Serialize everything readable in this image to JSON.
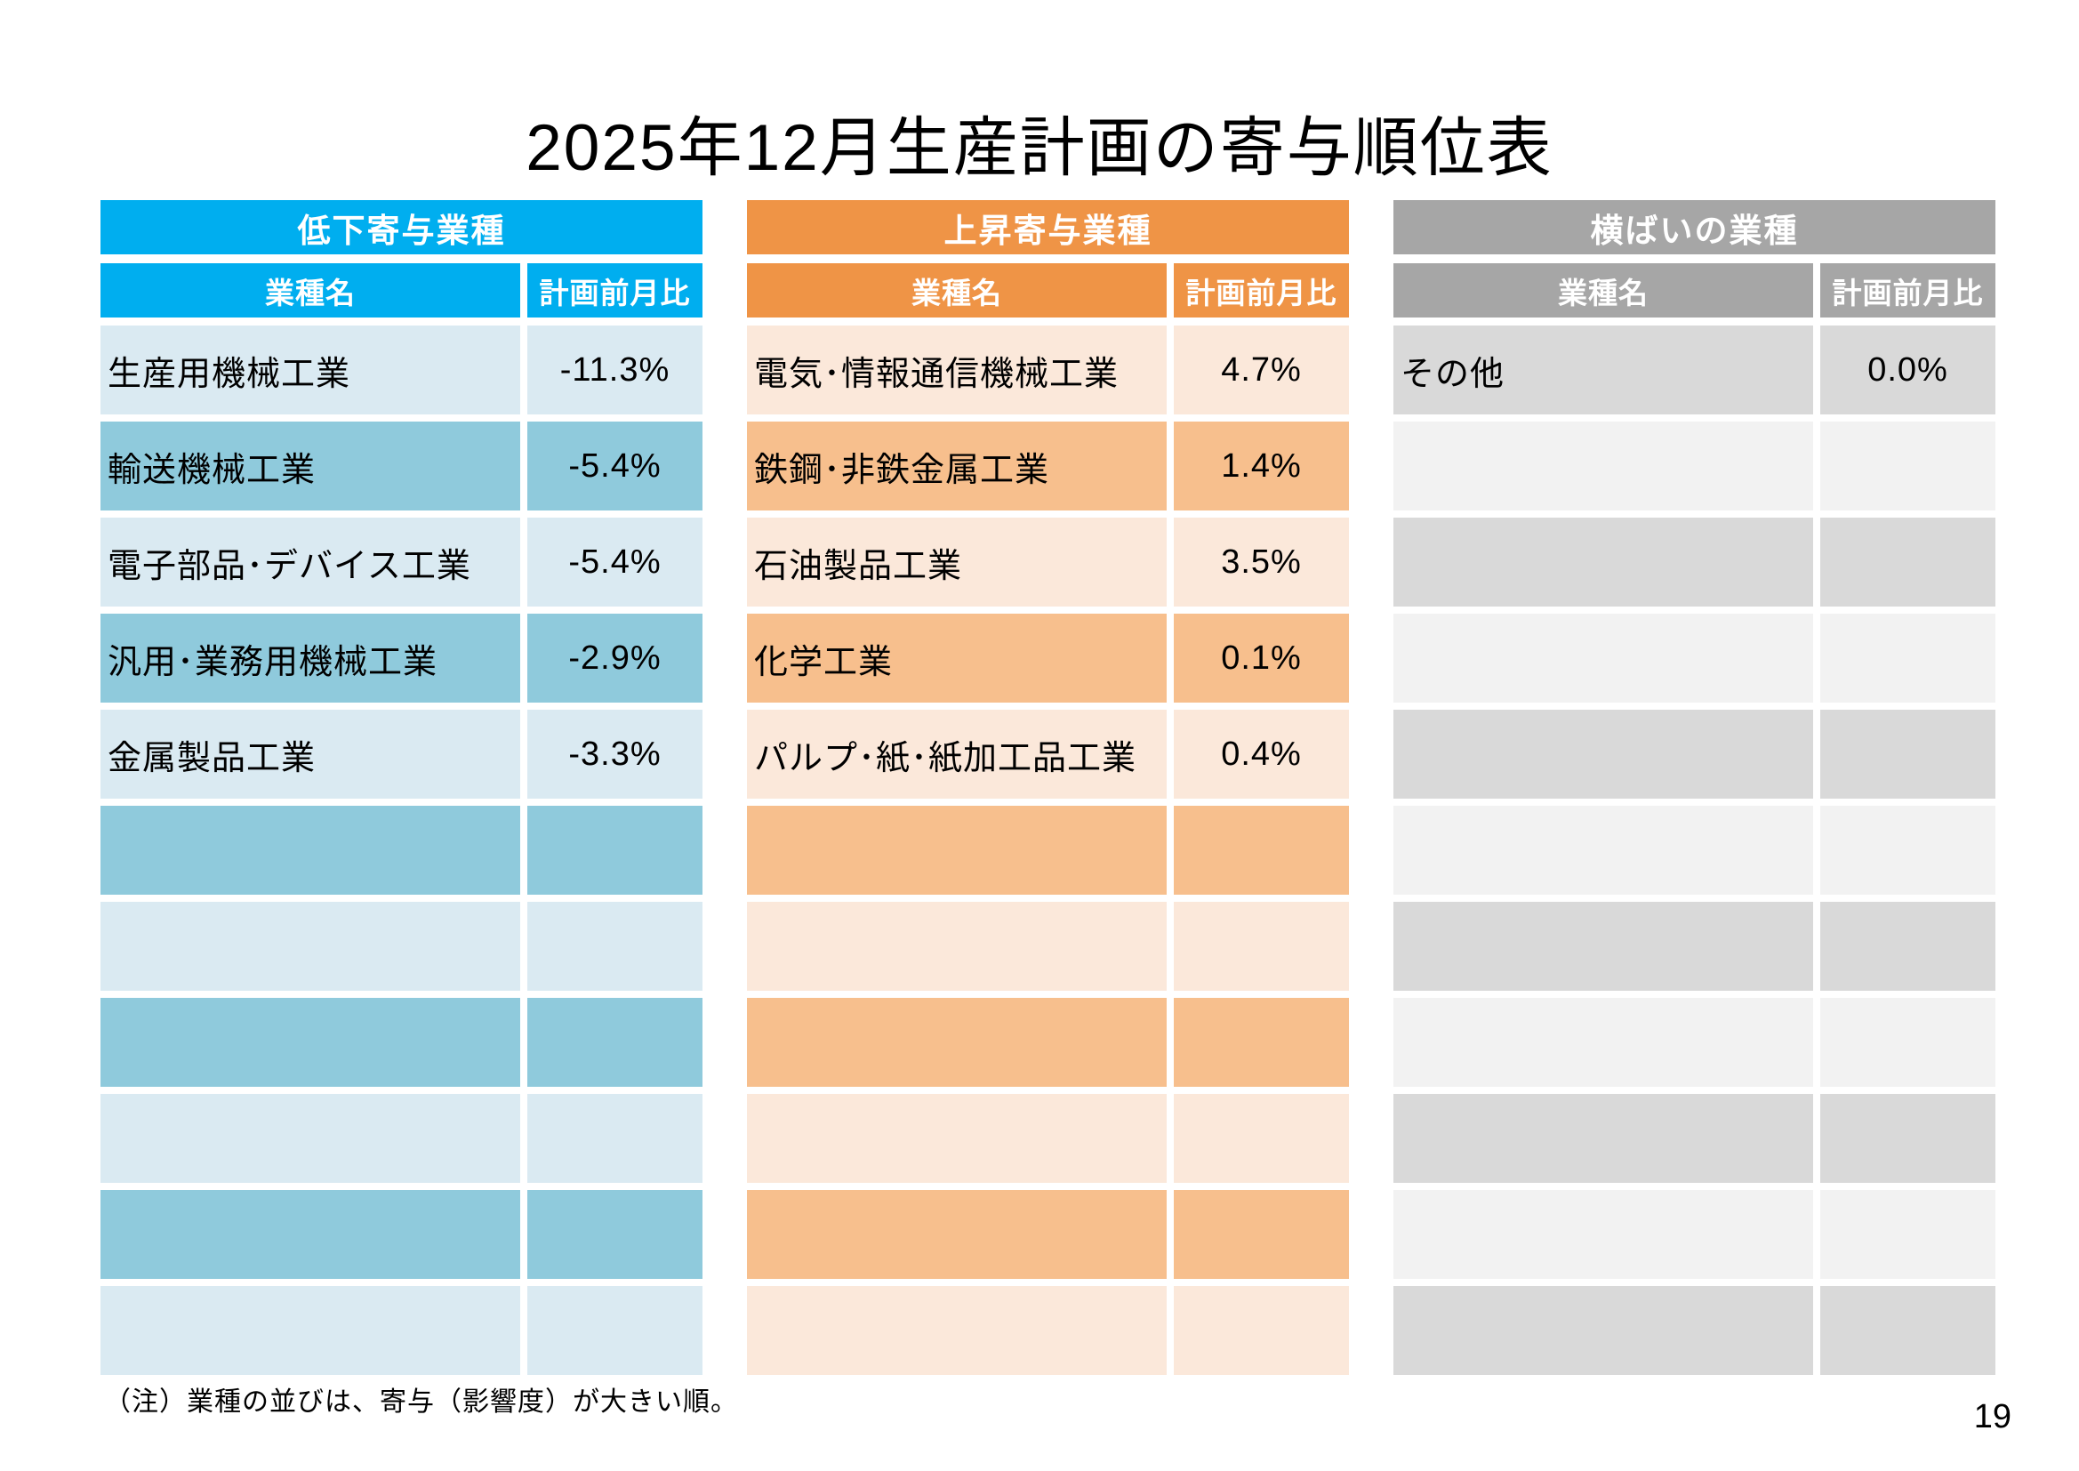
{
  "title": "2025年12月生産計画の寄与順位表",
  "note": "（注）業種の並びは、寄与（影響度）が大きい順。",
  "page_number": "19",
  "column_headers": {
    "name": "業種名",
    "value": "計画前月比"
  },
  "tables": [
    {
      "id": "decline",
      "header": "低下寄与業種",
      "name_col": "業種名",
      "value_col": "計画前月比",
      "colors": {
        "header": "#00AEEF",
        "row_light": "#DAEAF2",
        "row_dark": "#8FCADC"
      },
      "rows": [
        {
          "name": "生産用機械工業",
          "value": "-11.3%",
          "shade": "light"
        },
        {
          "name": "輸送機械工業",
          "value": "-5.4%",
          "shade": "dark"
        },
        {
          "name": "電子部品･デバイス工業",
          "value": "-5.4%",
          "shade": "light"
        },
        {
          "name": "汎用･業務用機械工業",
          "value": "-2.9%",
          "shade": "dark"
        },
        {
          "name": "金属製品工業",
          "value": "-3.3%",
          "shade": "light"
        },
        {
          "name": "",
          "value": "",
          "shade": "dark"
        },
        {
          "name": "",
          "value": "",
          "shade": "light"
        },
        {
          "name": "",
          "value": "",
          "shade": "dark"
        },
        {
          "name": "",
          "value": "",
          "shade": "light"
        },
        {
          "name": "",
          "value": "",
          "shade": "dark"
        },
        {
          "name": "",
          "value": "",
          "shade": "light"
        }
      ]
    },
    {
      "id": "rise",
      "header": "上昇寄与業種",
      "name_col": "業種名",
      "value_col": "計画前月比",
      "colors": {
        "header": "#EF9446",
        "row_light": "#FBE8DA",
        "row_dark": "#F7BF8D"
      },
      "rows": [
        {
          "name": "電気･情報通信機械工業",
          "value": "4.7%",
          "shade": "light"
        },
        {
          "name": "鉄鋼･非鉄金属工業",
          "value": "1.4%",
          "shade": "dark"
        },
        {
          "name": "石油製品工業",
          "value": "3.5%",
          "shade": "light"
        },
        {
          "name": "化学工業",
          "value": "0.1%",
          "shade": "dark"
        },
        {
          "name": "パルプ･紙･紙加工品工業",
          "value": "0.4%",
          "shade": "light"
        },
        {
          "name": "",
          "value": "",
          "shade": "dark"
        },
        {
          "name": "",
          "value": "",
          "shade": "light"
        },
        {
          "name": "",
          "value": "",
          "shade": "dark"
        },
        {
          "name": "",
          "value": "",
          "shade": "light"
        },
        {
          "name": "",
          "value": "",
          "shade": "dark"
        },
        {
          "name": "",
          "value": "",
          "shade": "light"
        }
      ]
    },
    {
      "id": "flat",
      "header": "横ばいの業種",
      "name_col": "業種名",
      "value_col": "計画前月比",
      "colors": {
        "header": "#A6A6A6",
        "row_light": "#F2F2F2",
        "row_dark": "#D9D9D9"
      },
      "rows": [
        {
          "name": "その他",
          "value": "0.0%",
          "shade": "dark"
        },
        {
          "name": "",
          "value": "",
          "shade": "light"
        },
        {
          "name": "",
          "value": "",
          "shade": "dark"
        },
        {
          "name": "",
          "value": "",
          "shade": "light"
        },
        {
          "name": "",
          "value": "",
          "shade": "dark"
        },
        {
          "name": "",
          "value": "",
          "shade": "light"
        },
        {
          "name": "",
          "value": "",
          "shade": "dark"
        },
        {
          "name": "",
          "value": "",
          "shade": "light"
        },
        {
          "name": "",
          "value": "",
          "shade": "dark"
        },
        {
          "name": "",
          "value": "",
          "shade": "light"
        },
        {
          "name": "",
          "value": "",
          "shade": "dark"
        }
      ]
    }
  ]
}
